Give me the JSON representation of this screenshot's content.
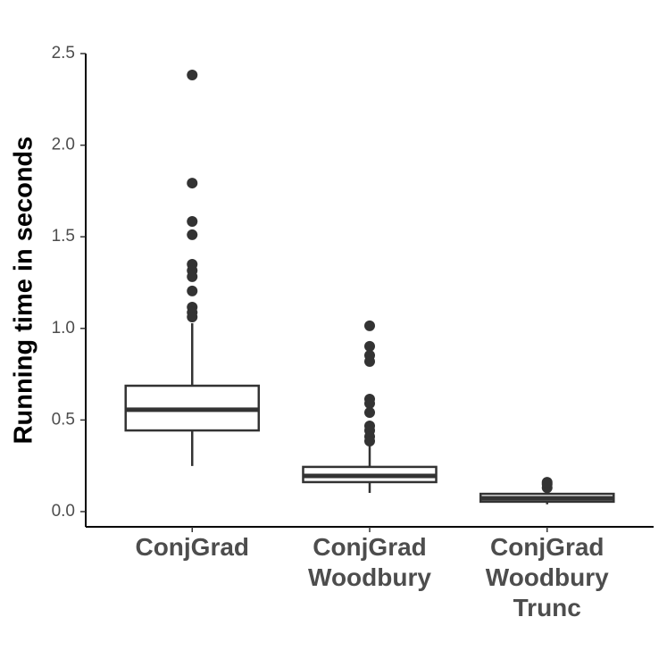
{
  "chart_data": {
    "type": "box",
    "y_label": "Running time in seconds",
    "categories": [
      [
        "ConjGrad"
      ],
      [
        "ConjGrad",
        "Woodbury"
      ],
      [
        "ConjGrad",
        "Woodbury",
        "Trunc"
      ]
    ],
    "boxes": [
      {
        "whisker_low": 0.249,
        "q1": 0.443,
        "median": 0.556,
        "q3": 0.687,
        "whisker_high": 1.028,
        "outliers": [
          2.383,
          1.793,
          1.584,
          1.511,
          1.35,
          1.316,
          1.282,
          1.204,
          1.116,
          1.087,
          1.062
        ]
      },
      {
        "whisker_low": 0.102,
        "q1": 0.161,
        "median": 0.195,
        "q3": 0.244,
        "whisker_high": 0.37,
        "outliers": [
          1.014,
          0.902,
          0.853,
          0.819,
          0.614,
          0.59,
          0.541,
          0.468,
          0.443,
          0.409,
          0.385
        ]
      },
      {
        "whisker_low": 0.04,
        "q1": 0.054,
        "median": 0.073,
        "q3": 0.097,
        "whisker_high": 0.12,
        "outliers": [
          0.13,
          0.15,
          0.16
        ]
      }
    ],
    "color": "#333333",
    "ylim": [
      -0.083,
      2.5
    ],
    "yticks": [
      {
        "value": 0,
        "label": "0.0"
      },
      0.5,
      {
        "value": 1,
        "label": "1.0"
      },
      1.5,
      {
        "value": 2,
        "label": "2.0"
      },
      2.5
    ]
  }
}
